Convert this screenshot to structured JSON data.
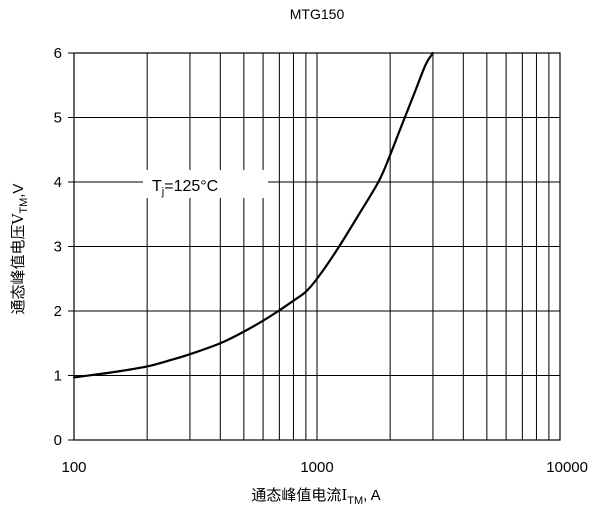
{
  "chart_data": {
    "type": "line",
    "title": "MTG150",
    "xlabel_main": "通态峰值电流I",
    "xlabel_sub": "TM",
    "xlabel_tail": ",  A",
    "ylabel_main": "通态峰值电压V",
    "ylabel_sub": "TM",
    "ylabel_tail": ",V",
    "xscale": "log",
    "xlim": [
      100,
      10000
    ],
    "ylim": [
      0,
      6
    ],
    "grid": true,
    "x_ticks": [
      "100",
      "1000",
      "10000"
    ],
    "y_ticks": [
      "0",
      "1",
      "2",
      "3",
      "4",
      "5",
      "6"
    ],
    "annotation": {
      "main": "T",
      "sub": "j",
      "tail": "=125°C"
    },
    "series": [
      {
        "x": [
          100,
          120,
          150,
          200,
          250,
          300,
          400,
          500,
          600,
          700,
          800,
          900,
          1000,
          1200,
          1500,
          1800,
          2000,
          2200,
          2500,
          2800,
          3000
        ],
        "y": [
          0.97,
          1.01,
          1.06,
          1.14,
          1.24,
          1.33,
          1.5,
          1.68,
          1.85,
          2.01,
          2.16,
          2.3,
          2.5,
          2.93,
          3.52,
          4.02,
          4.42,
          4.82,
          5.35,
          5.82,
          6.0
        ]
      }
    ]
  }
}
